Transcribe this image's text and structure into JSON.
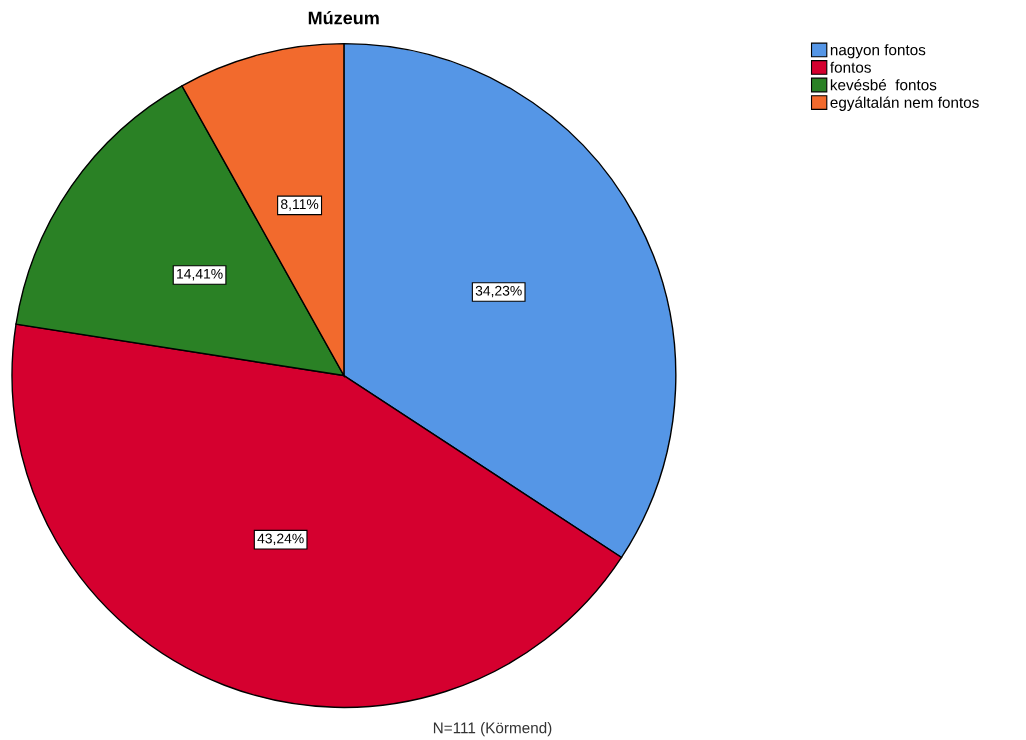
{
  "chart_data": {
    "type": "pie",
    "title": "Múzeum",
    "categories": [
      "nagyon fontos",
      "fontos",
      "kevésbé  fontos",
      "egyáltalán nem fontos"
    ],
    "values": [
      34.23,
      43.24,
      14.41,
      8.11
    ],
    "value_labels": [
      "34,23%",
      "43,24%",
      "14,41%",
      "8,11%"
    ],
    "colors": [
      "#5596e6",
      "#d5002f",
      "#2a8125",
      "#f26a2d"
    ],
    "legend": "top right",
    "annotations": [
      "N=111 (Körmend)"
    ]
  }
}
